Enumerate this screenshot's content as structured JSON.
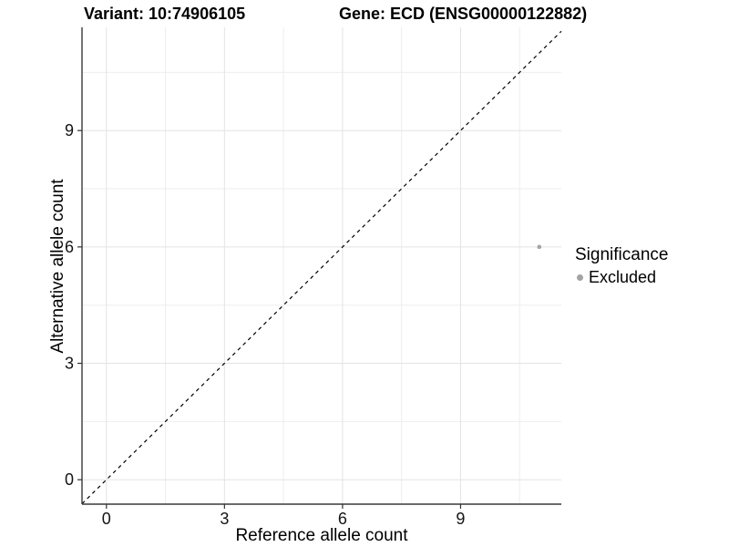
{
  "figure": {
    "title_left": "Variant: 10:74906105",
    "title_right": "Gene: ECD (ENSG00000122882)"
  },
  "chart_data": {
    "type": "scatter",
    "title": "Variant: 10:74906105  Gene: ECD (ENSG00000122882)",
    "xlabel": "Reference allele count",
    "ylabel": "Alternative allele count",
    "xlim": [
      -0.62,
      11.56
    ],
    "ylim": [
      -0.63,
      11.66
    ],
    "x_major_ticks": [
      0,
      3,
      6,
      9
    ],
    "y_major_ticks": [
      0,
      3,
      6,
      9
    ],
    "x_minor_ticks": [
      1.5,
      4.5,
      7.5,
      10.5
    ],
    "y_minor_ticks": [
      1.5,
      4.5,
      7.5,
      10.5
    ],
    "grid": "major+minor",
    "reference_line": {
      "type": "identity",
      "style": "dashed",
      "color": "#000000"
    },
    "series": [
      {
        "name": "Excluded",
        "color": "#a3a3a3",
        "points": [
          {
            "x": 11,
            "y": 6
          }
        ]
      }
    ],
    "legend": {
      "title": "Significance",
      "position": "right",
      "items": [
        {
          "label": "Excluded",
          "color": "#a3a3a3"
        }
      ]
    }
  },
  "colors": {
    "background": "#ffffff",
    "axis_line": "#383838",
    "tick_mark": "#333333",
    "tick_text": "#141414",
    "grid_major": "#e3e3e3",
    "grid_minor": "#eeeeee",
    "title_text": "#000000",
    "point": "#a3a3a3"
  }
}
